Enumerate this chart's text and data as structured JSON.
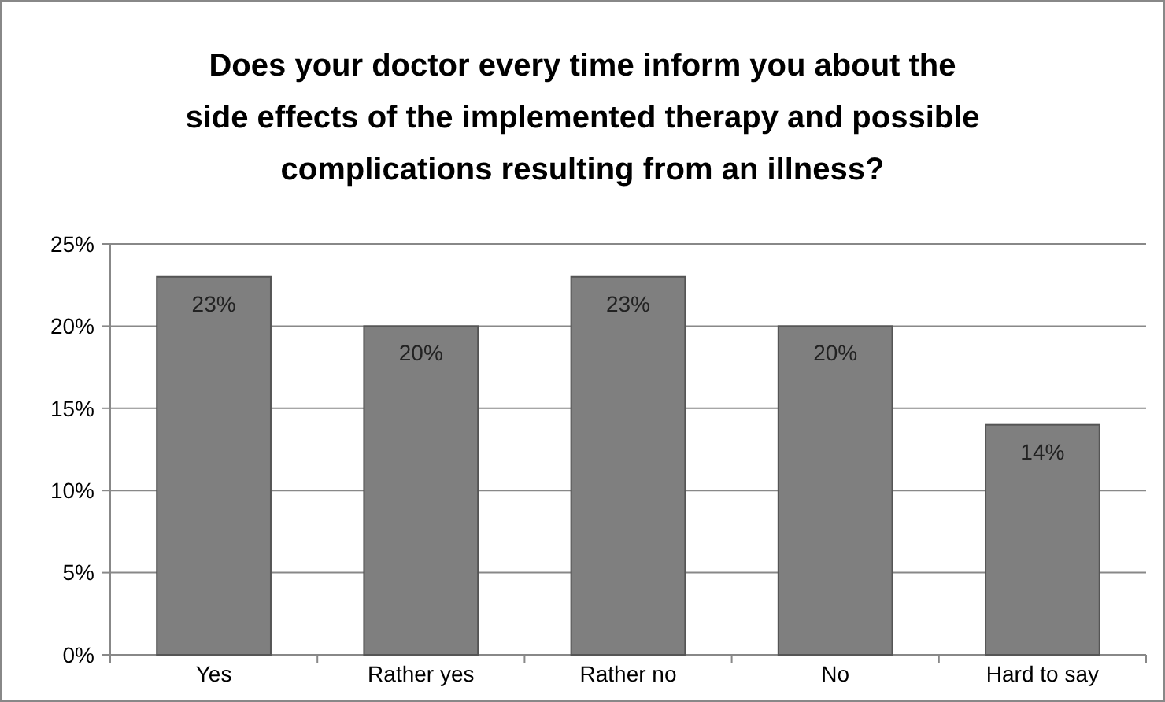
{
  "chart_data": {
    "type": "bar",
    "title": "Does your doctor every time inform you about the side effects of the implemented therapy and possible complications resulting from an illness?",
    "categories": [
      "Yes",
      "Rather yes",
      "Rather no",
      "No",
      "Hard to say"
    ],
    "values": [
      23,
      20,
      23,
      20,
      14
    ],
    "value_labels": [
      "23%",
      "20%",
      "23%",
      "20%",
      "14%"
    ],
    "color": "#7f7f7f",
    "ylim": [
      0,
      25
    ],
    "yticks": [
      {
        "value": 0,
        "label": "0%"
      },
      {
        "value": 5,
        "label": "5%"
      },
      {
        "value": 10,
        "label": "10%"
      },
      {
        "value": 15,
        "label": "15%"
      },
      {
        "value": 20,
        "label": "20%"
      },
      {
        "value": 25,
        "label": "25%"
      }
    ],
    "grid": "y"
  }
}
